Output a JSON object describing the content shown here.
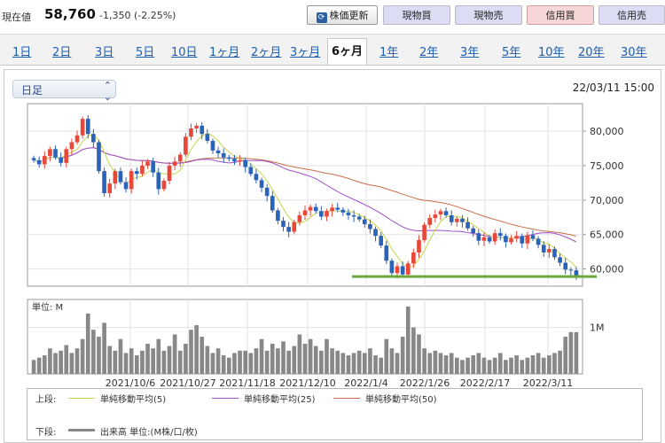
{
  "header": {
    "price_label": "現在値",
    "price_value": "58,760",
    "price_change": "-1,350 (-2.25%)",
    "update_button": "株価更新",
    "update_icon": "refresh-icon",
    "buttons": [
      "現物買",
      "現物売",
      "信用買",
      "信用売"
    ]
  },
  "tabs": [
    "1日",
    "2日",
    "3日",
    "5日",
    "10日",
    "1ヶ月",
    "2ヶ月",
    "3ヶ月",
    "6ヶ月",
    "1年",
    "2年",
    "3年",
    "5年",
    "10年",
    "20年",
    "30年"
  ],
  "active_tab": "6ヶ月",
  "controls": {
    "period_select": "日足",
    "datetime": "22/03/11 15:00"
  },
  "legend": {
    "upper_label": "上段:",
    "lower_label": "下段:",
    "ma5": "単純移動平均(5)",
    "ma25": "単純移動平均(25)",
    "ma50": "単純移動平均(50)",
    "volume": "出来高 単位:(M株/口/枚)"
  },
  "colors": {
    "up": "#e8483a",
    "down": "#2b63b8",
    "ma5": "#c8d44a",
    "ma25": "#a050c8",
    "ma50": "#c86e4a",
    "volume": "#888888",
    "support_line": "#6aaa3a"
  },
  "chart_data": [
    {
      "type": "candlestick",
      "ylim": [
        57500,
        84000
      ],
      "yticks": [
        60000,
        65000,
        70000,
        75000,
        80000
      ],
      "ytick_labels": [
        "60,000",
        "65,000",
        "70,000",
        "75,000",
        "80,000"
      ],
      "xtick_labels": [
        "2021/10/6",
        "2021/10/27",
        "2021/11/18",
        "2021/12/10",
        "2022/1/4",
        "2022/1/26",
        "2022/2/17",
        "2022/3/11"
      ],
      "support_level": 58900,
      "close": [
        75800,
        75200,
        76400,
        77400,
        76200,
        75400,
        77400,
        78400,
        79400,
        81800,
        79600,
        78400,
        74200,
        71000,
        72400,
        74200,
        72600,
        71600,
        74200,
        73800,
        75000,
        75600,
        74000,
        71600,
        72800,
        75000,
        75600,
        76600,
        79200,
        80400,
        80800,
        79600,
        78600,
        77200,
        76800,
        76200,
        76000,
        75600,
        75800,
        74800,
        73800,
        72900,
        71800,
        70600,
        68500,
        67000,
        66100,
        65400,
        66800,
        67800,
        68500,
        69000,
        68400,
        67600,
        68400,
        68900,
        68600,
        68200,
        67800,
        67600,
        67200,
        66500,
        65800,
        64800,
        63400,
        61200,
        59400,
        60400,
        59200,
        60800,
        62400,
        64200,
        66400,
        67400,
        67900,
        68400,
        67800,
        66800,
        67300,
        66800,
        65900,
        65200,
        64100,
        64600,
        64000,
        65200,
        64800,
        63900,
        64400,
        64800,
        63700,
        64900,
        64400,
        63500,
        62400,
        62900,
        61700,
        60900,
        59900,
        59800,
        58760
      ],
      "volume_label": "単位: M",
      "volume_tick": "1M",
      "volume_max_m": 1.45,
      "volume": [
        0.3,
        0.35,
        0.4,
        0.55,
        0.45,
        0.5,
        0.62,
        0.45,
        0.55,
        0.75,
        1.3,
        0.95,
        0.8,
        1.1,
        0.6,
        0.5,
        0.75,
        0.45,
        0.55,
        0.4,
        0.5,
        0.65,
        0.55,
        0.75,
        0.5,
        0.6,
        0.85,
        0.5,
        0.65,
        0.95,
        1.05,
        0.8,
        0.6,
        0.45,
        0.55,
        0.4,
        0.35,
        0.45,
        0.5,
        0.5,
        0.45,
        0.55,
        0.75,
        0.5,
        0.65,
        0.55,
        0.7,
        0.5,
        0.6,
        0.85,
        0.65,
        0.75,
        0.6,
        0.5,
        0.75,
        0.55,
        0.5,
        0.45,
        0.4,
        0.45,
        0.5,
        0.45,
        0.55,
        0.4,
        0.35,
        0.75,
        0.55,
        0.45,
        0.8,
        1.45,
        1.0,
        0.85,
        0.55,
        0.45,
        0.5,
        0.45,
        0.4,
        0.45,
        0.35,
        0.3,
        0.35,
        0.4,
        0.45,
        0.35,
        0.3,
        0.35,
        0.45,
        0.3,
        0.35,
        0.4,
        0.3,
        0.35,
        0.4,
        0.45,
        0.35,
        0.4,
        0.45,
        0.5,
        0.8,
        0.9,
        0.9
      ]
    }
  ]
}
